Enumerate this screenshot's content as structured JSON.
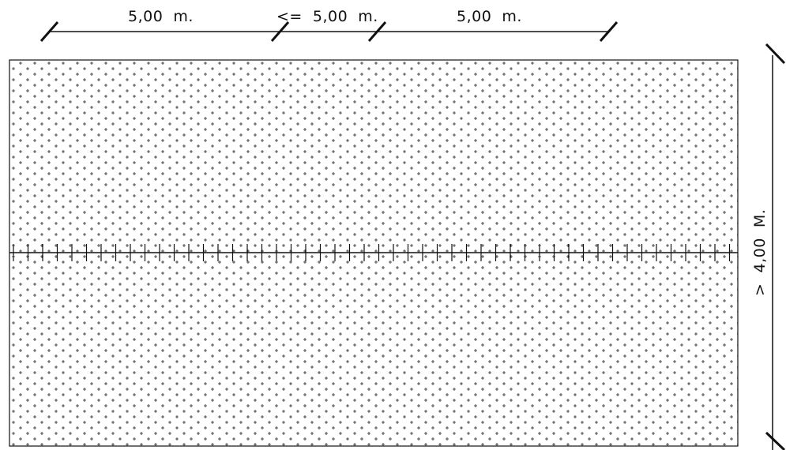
{
  "dimensions": {
    "top_left": "5,00  m.",
    "top_middle": "<=  5,00  m.",
    "top_right": "5,00  m.",
    "right_vertical": ">  4,00  M."
  },
  "colors": {
    "line": "#111111",
    "background": "#ffffff"
  }
}
